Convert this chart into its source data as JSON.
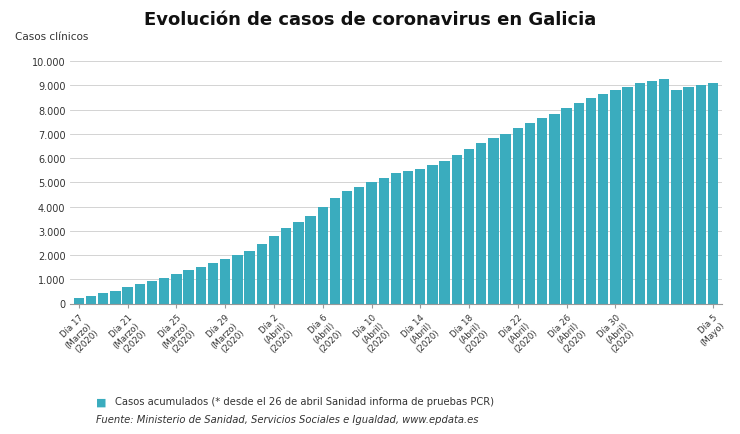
{
  "title": "Evolución de casos de coronavirus en Galicia",
  "ylabel": "Casos clínicos",
  "bar_color": "#3aacbe",
  "legend_label": "Casos acumulados (* desde el 26 de abril Sanidad informa de pruebas PCR)",
  "source_text": "Fuente: Ministerio de Sanidad, Servicios Sociales e Igualdad, www.epdata.es",
  "ylim": [
    0,
    10500
  ],
  "yticks": [
    0,
    1000,
    2000,
    3000,
    4000,
    5000,
    6000,
    7000,
    8000,
    9000,
    10000
  ],
  "ytick_labels": [
    "0",
    "1.000",
    "2.000",
    "3.000",
    "4.000",
    "5.000",
    "6.000",
    "7.000",
    "8.000",
    "9.000",
    "10.000"
  ],
  "values": [
    208,
    302,
    424,
    533,
    674,
    815,
    915,
    1045,
    1208,
    1369,
    1520,
    1660,
    1843,
    2006,
    2173,
    2467,
    2772,
    3124,
    3374,
    3591,
    4002,
    4336,
    4635,
    4811,
    5005,
    5198,
    5379,
    5464,
    5549,
    5724,
    5886,
    6132,
    6386,
    6618,
    6820,
    7007,
    7247,
    7462,
    7649,
    7812,
    8076,
    8286,
    8491,
    8647,
    8791,
    8948,
    9087,
    9185,
    9264,
    8803,
    8929,
    9036,
    9100
  ],
  "x_tick_positions": [
    0,
    4,
    8,
    12,
    16,
    20,
    24,
    28,
    32,
    36,
    40,
    44,
    52
  ],
  "x_tick_labels": [
    "Día 17\n(Marzo)\n(2020)",
    "Día 21\n(Marzo)\n(2020)",
    "Día 25\n(Marzo)\n(2020)",
    "Día 29\n(Marzo)\n(2020)",
    "Día 2\n(Abril)\n(2020)",
    "Día 6\n(Abril)\n(2020)",
    "Día 10\n(Abril)\n(2020)",
    "Día 14\n(Abril)\n(2020)",
    "Día 18\n(Abril)\n(2020)",
    "Día 22\n(Abril)\n(2020)",
    "Día 26\n(Abril)\n(2020)",
    "Día 30\n(Abril)\n(2020)",
    "Día 5\n(Mayo)"
  ],
  "background_color": "#ffffff",
  "grid_color": "#cccccc"
}
